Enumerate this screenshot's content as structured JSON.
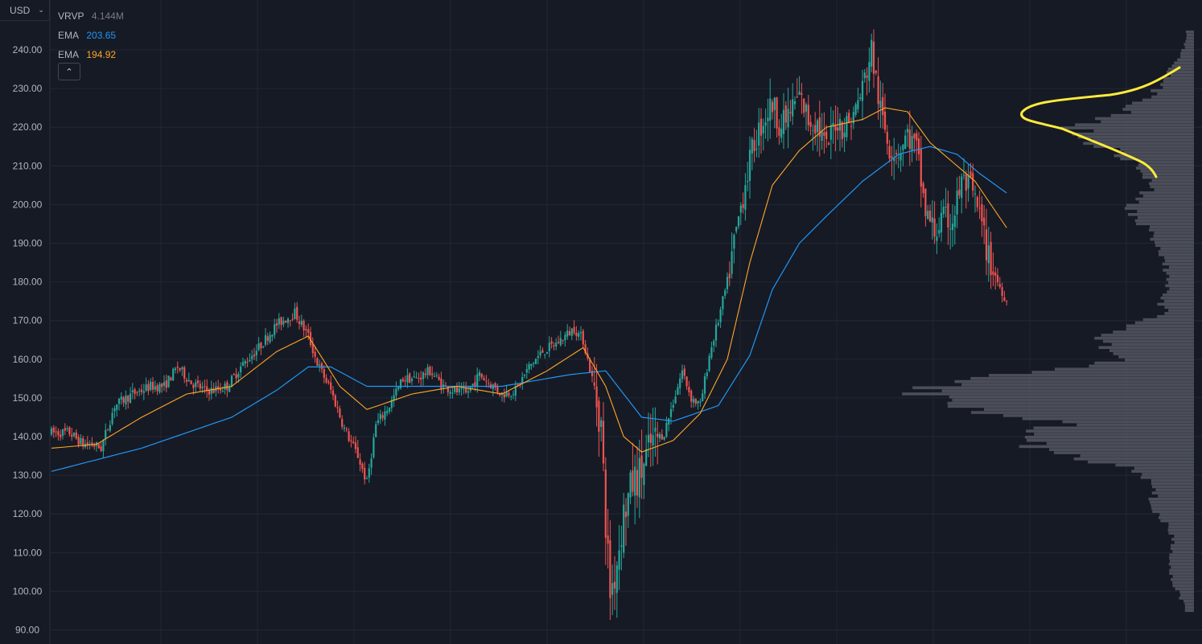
{
  "header": {
    "currency": "USD",
    "collapse_icon": "chevron-up-icon"
  },
  "legend": [
    {
      "name": "VRVP",
      "value": "4.144M",
      "color": "#787b86"
    },
    {
      "name": "EMA",
      "value": "203.65",
      "color": "#2196f3"
    },
    {
      "name": "EMA",
      "value": "194.92",
      "color": "#ffa726"
    }
  ],
  "colors": {
    "background": "#161a25",
    "grid": "#232734",
    "up": "#26a69a",
    "down": "#ef5350",
    "ema_slow": "#2196f3",
    "ema_fast": "#ffa726",
    "volume_profile": "#5d6069",
    "annotation": "#ffeb3b"
  },
  "chart_data": {
    "type": "candlestick",
    "y_ticks": [
      "240.00",
      "230.00",
      "220.00",
      "210.00",
      "200.00",
      "190.00",
      "180.00",
      "170.00",
      "160.00",
      "150.00",
      "140.00",
      "130.00",
      "120.00",
      "110.00",
      "100.00",
      "90.00"
    ],
    "ylim": [
      88,
      246
    ],
    "price_path": [
      [
        0,
        141
      ],
      [
        8,
        141
      ],
      [
        14,
        138
      ],
      [
        18,
        138
      ],
      [
        22,
        137
      ],
      [
        28,
        148
      ],
      [
        36,
        151
      ],
      [
        44,
        153
      ],
      [
        50,
        153
      ],
      [
        56,
        158
      ],
      [
        62,
        154
      ],
      [
        68,
        152
      ],
      [
        72,
        152
      ],
      [
        78,
        153
      ],
      [
        84,
        158
      ],
      [
        92,
        163
      ],
      [
        100,
        169
      ],
      [
        108,
        172
      ],
      [
        114,
        166
      ],
      [
        118,
        159
      ],
      [
        124,
        152
      ],
      [
        130,
        142
      ],
      [
        136,
        135
      ],
      [
        140,
        128
      ],
      [
        144,
        143
      ],
      [
        150,
        148
      ],
      [
        156,
        155
      ],
      [
        162,
        155
      ],
      [
        168,
        157
      ],
      [
        174,
        153
      ],
      [
        178,
        152
      ],
      [
        184,
        151
      ],
      [
        190,
        156
      ],
      [
        194,
        154
      ],
      [
        200,
        151
      ],
      [
        206,
        152
      ],
      [
        212,
        158
      ],
      [
        218,
        162
      ],
      [
        224,
        164
      ],
      [
        232,
        168
      ],
      [
        236,
        165
      ],
      [
        240,
        155
      ],
      [
        244,
        143
      ],
      [
        246,
        118
      ],
      [
        248,
        100
      ],
      [
        250,
        104
      ],
      [
        254,
        120
      ],
      [
        258,
        128
      ],
      [
        262,
        131
      ],
      [
        266,
        138
      ],
      [
        272,
        141
      ],
      [
        276,
        149
      ],
      [
        280,
        157
      ],
      [
        284,
        150
      ],
      [
        288,
        148
      ],
      [
        292,
        161
      ],
      [
        296,
        170
      ],
      [
        300,
        180
      ],
      [
        304,
        193
      ],
      [
        308,
        206
      ],
      [
        312,
        216
      ],
      [
        316,
        222
      ],
      [
        320,
        226
      ],
      [
        324,
        220
      ],
      [
        328,
        224
      ],
      [
        332,
        228
      ],
      [
        336,
        222
      ],
      [
        340,
        221
      ],
      [
        344,
        214
      ],
      [
        348,
        222
      ],
      [
        352,
        220
      ],
      [
        356,
        223
      ],
      [
        360,
        230
      ],
      [
        364,
        240
      ],
      [
        368,
        224
      ],
      [
        372,
        215
      ],
      [
        376,
        214
      ],
      [
        380,
        218
      ],
      [
        384,
        214
      ],
      [
        388,
        198
      ],
      [
        392,
        193
      ],
      [
        396,
        196
      ],
      [
        400,
        196
      ],
      [
        404,
        206
      ],
      [
        408,
        204
      ],
      [
        412,
        197
      ],
      [
        416,
        186
      ],
      [
        420,
        180
      ],
      [
        424,
        175
      ]
    ],
    "ema_fast_path": [
      [
        0,
        137
      ],
      [
        20,
        138
      ],
      [
        40,
        145
      ],
      [
        60,
        151
      ],
      [
        80,
        153
      ],
      [
        100,
        162
      ],
      [
        114,
        166
      ],
      [
        128,
        153
      ],
      [
        140,
        147
      ],
      [
        160,
        151
      ],
      [
        180,
        153
      ],
      [
        200,
        151
      ],
      [
        220,
        157
      ],
      [
        236,
        163
      ],
      [
        246,
        153
      ],
      [
        254,
        140
      ],
      [
        262,
        136
      ],
      [
        276,
        139
      ],
      [
        288,
        146
      ],
      [
        300,
        160
      ],
      [
        310,
        185
      ],
      [
        320,
        205
      ],
      [
        332,
        214
      ],
      [
        344,
        220
      ],
      [
        360,
        222
      ],
      [
        370,
        225
      ],
      [
        380,
        224
      ],
      [
        390,
        216
      ],
      [
        400,
        211
      ],
      [
        410,
        206
      ],
      [
        424,
        194
      ]
    ],
    "ema_slow_path": [
      [
        0,
        131
      ],
      [
        20,
        134
      ],
      [
        40,
        137
      ],
      [
        60,
        141
      ],
      [
        80,
        145
      ],
      [
        100,
        152
      ],
      [
        114,
        158
      ],
      [
        124,
        158
      ],
      [
        140,
        153
      ],
      [
        170,
        153
      ],
      [
        200,
        153
      ],
      [
        230,
        156
      ],
      [
        246,
        157
      ],
      [
        262,
        145
      ],
      [
        276,
        144
      ],
      [
        296,
        148
      ],
      [
        310,
        161
      ],
      [
        320,
        178
      ],
      [
        332,
        190
      ],
      [
        344,
        197
      ],
      [
        360,
        206
      ],
      [
        376,
        213
      ],
      [
        390,
        215
      ],
      [
        402,
        213
      ],
      [
        412,
        208
      ],
      [
        424,
        203
      ]
    ],
    "n_candles": 425
  },
  "annotation": {
    "type": "freehand",
    "label": ""
  }
}
